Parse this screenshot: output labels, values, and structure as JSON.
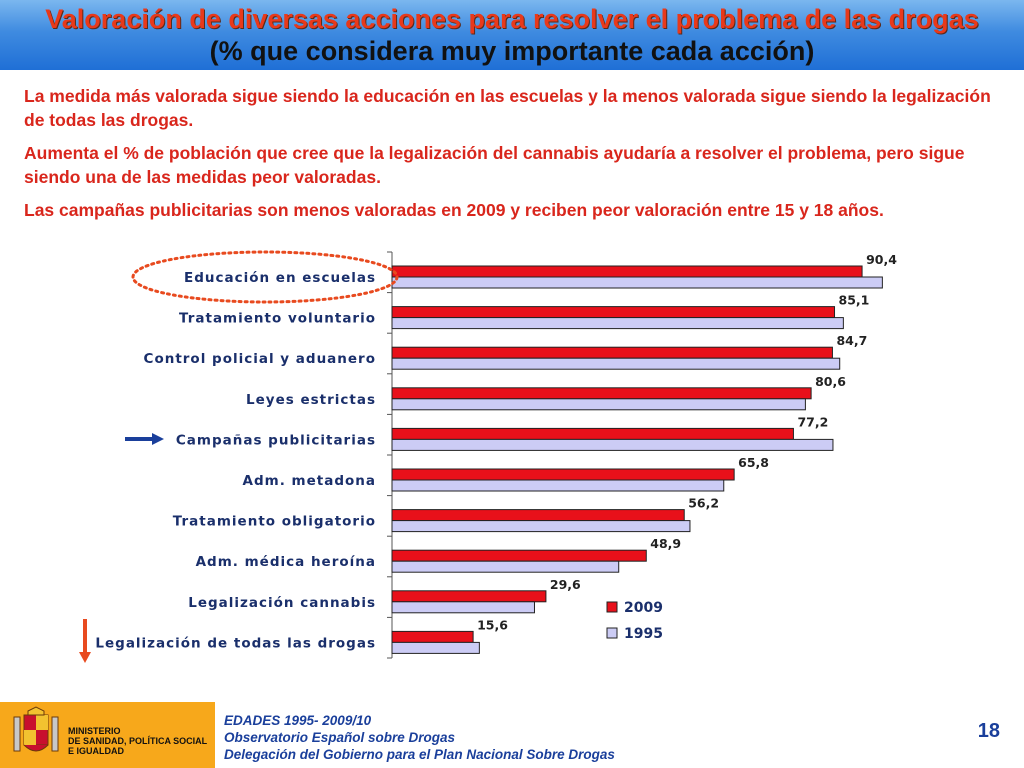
{
  "header": {
    "title": "Valoración de diversas acciones para resolver el problema de las drogas",
    "subtitle": "(% que considera muy importante cada acción)"
  },
  "paragraphs": [
    "La medida más valorada sigue siendo la educación en las escuelas y la menos valorada sigue siendo la legalización de todas las drogas.",
    "Aumenta el % de población que cree que la legalización del cannabis ayudaría a resolver el problema, pero sigue siendo una de las medidas peor valoradas.",
    "Las campañas publicitarias son menos valoradas en 2009 y reciben peor valoración entre 15 y 18 años."
  ],
  "chart_data": {
    "type": "bar",
    "orientation": "horizontal",
    "categories": [
      "Educación en escuelas",
      "Tratamiento voluntario",
      "Control policial y aduanero",
      "Leyes estrictas",
      "Campañas publicitarias",
      "Adm. metadona",
      "Tratamiento obligatorio",
      "Adm. médica heroína",
      "Legalización cannabis",
      "Legalización de todas las drogas"
    ],
    "series": [
      {
        "name": "2009",
        "color": "#e8101a",
        "values": [
          90.4,
          85.1,
          84.7,
          80.6,
          77.2,
          65.8,
          56.2,
          48.9,
          29.6,
          15.6
        ]
      },
      {
        "name": "1995",
        "color": "#ccccf5",
        "values": [
          94.3,
          86.8,
          86.1,
          79.5,
          84.8,
          63.8,
          57.3,
          43.6,
          27.4,
          16.8
        ]
      }
    ],
    "data_labels": [
      "90,4",
      "85,1",
      "84,7",
      "80,6",
      "77,2",
      "65,8",
      "56,2",
      "48,9",
      "29,6",
      "15,6"
    ],
    "xlim": [
      0,
      100
    ],
    "legend": "bottom-right",
    "annotations": [
      {
        "type": "ellipse",
        "target": "Educación en escuelas",
        "color": "#e84a1f"
      },
      {
        "type": "arrow-right",
        "target": "Campañas publicitarias",
        "color": "#1a3f9b"
      },
      {
        "type": "arrow-down",
        "target": "Legalización de todas las drogas",
        "color": "#e84a1f"
      }
    ]
  },
  "footer": {
    "ministry_lines": [
      "MINISTERIO",
      "DE SANIDAD, POLÍTICA SOCIAL",
      "E IGUALDAD"
    ],
    "source_lines": [
      "EDADES 1995- 2009/10",
      "Observatorio Español sobre Drogas",
      "Delegación del Gobierno para el Plan Nacional Sobre Drogas"
    ],
    "page_number": "18"
  }
}
